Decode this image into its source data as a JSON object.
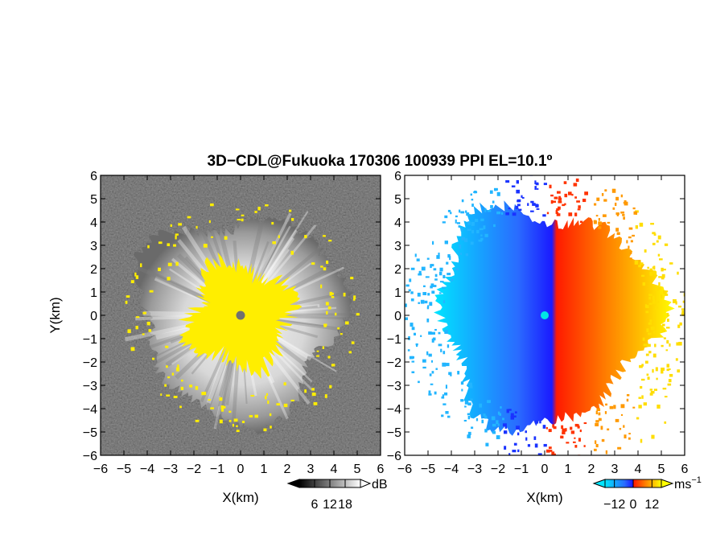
{
  "chart_data": [
    {
      "type": "heatmap",
      "title": "3D−CDL@Fukuoka 170306 100939 PPI EL=10.1º",
      "panel": "reflectivity",
      "xlabel": "X(km)",
      "ylabel": "Y(km)",
      "xlim": [
        -6,
        6
      ],
      "ylim": [
        -6,
        6
      ],
      "xticks": [
        -6,
        -5,
        -4,
        -3,
        -2,
        -1,
        0,
        1,
        2,
        3,
        4,
        5,
        6
      ],
      "yticks": [
        -6,
        -5,
        -4,
        -3,
        -2,
        -1,
        0,
        1,
        2,
        3,
        4,
        5,
        6
      ],
      "colorbar": {
        "unit": "dB",
        "ticks": [
          6,
          12,
          18
        ],
        "range": [
          0,
          24
        ],
        "colors": [
          "#000000",
          "#ffffff"
        ]
      },
      "highlight_color": "#ffee00"
    },
    {
      "type": "heatmap",
      "panel": "doppler-velocity",
      "xlabel": "X(km)",
      "ylabel": "",
      "xlim": [
        -6,
        6
      ],
      "ylim": [
        -6,
        6
      ],
      "xticks": [
        -6,
        -5,
        -4,
        -3,
        -2,
        -1,
        0,
        1,
        2,
        3,
        4,
        5,
        6
      ],
      "yticks": [
        -6,
        -5,
        -4,
        -3,
        -2,
        -1,
        0,
        1,
        2,
        3,
        4,
        5,
        6
      ],
      "colorbar": {
        "unit": "ms",
        "unit_exponent": "−1",
        "ticks": [
          -12,
          0,
          12
        ],
        "tick_labels": [
          "−12",
          "0",
          "12"
        ],
        "range": [
          -18,
          18
        ],
        "colors": [
          "#00e5ff",
          "#1a33ff",
          "#ff1a00",
          "#ff8000",
          "#ffff00"
        ]
      }
    }
  ]
}
